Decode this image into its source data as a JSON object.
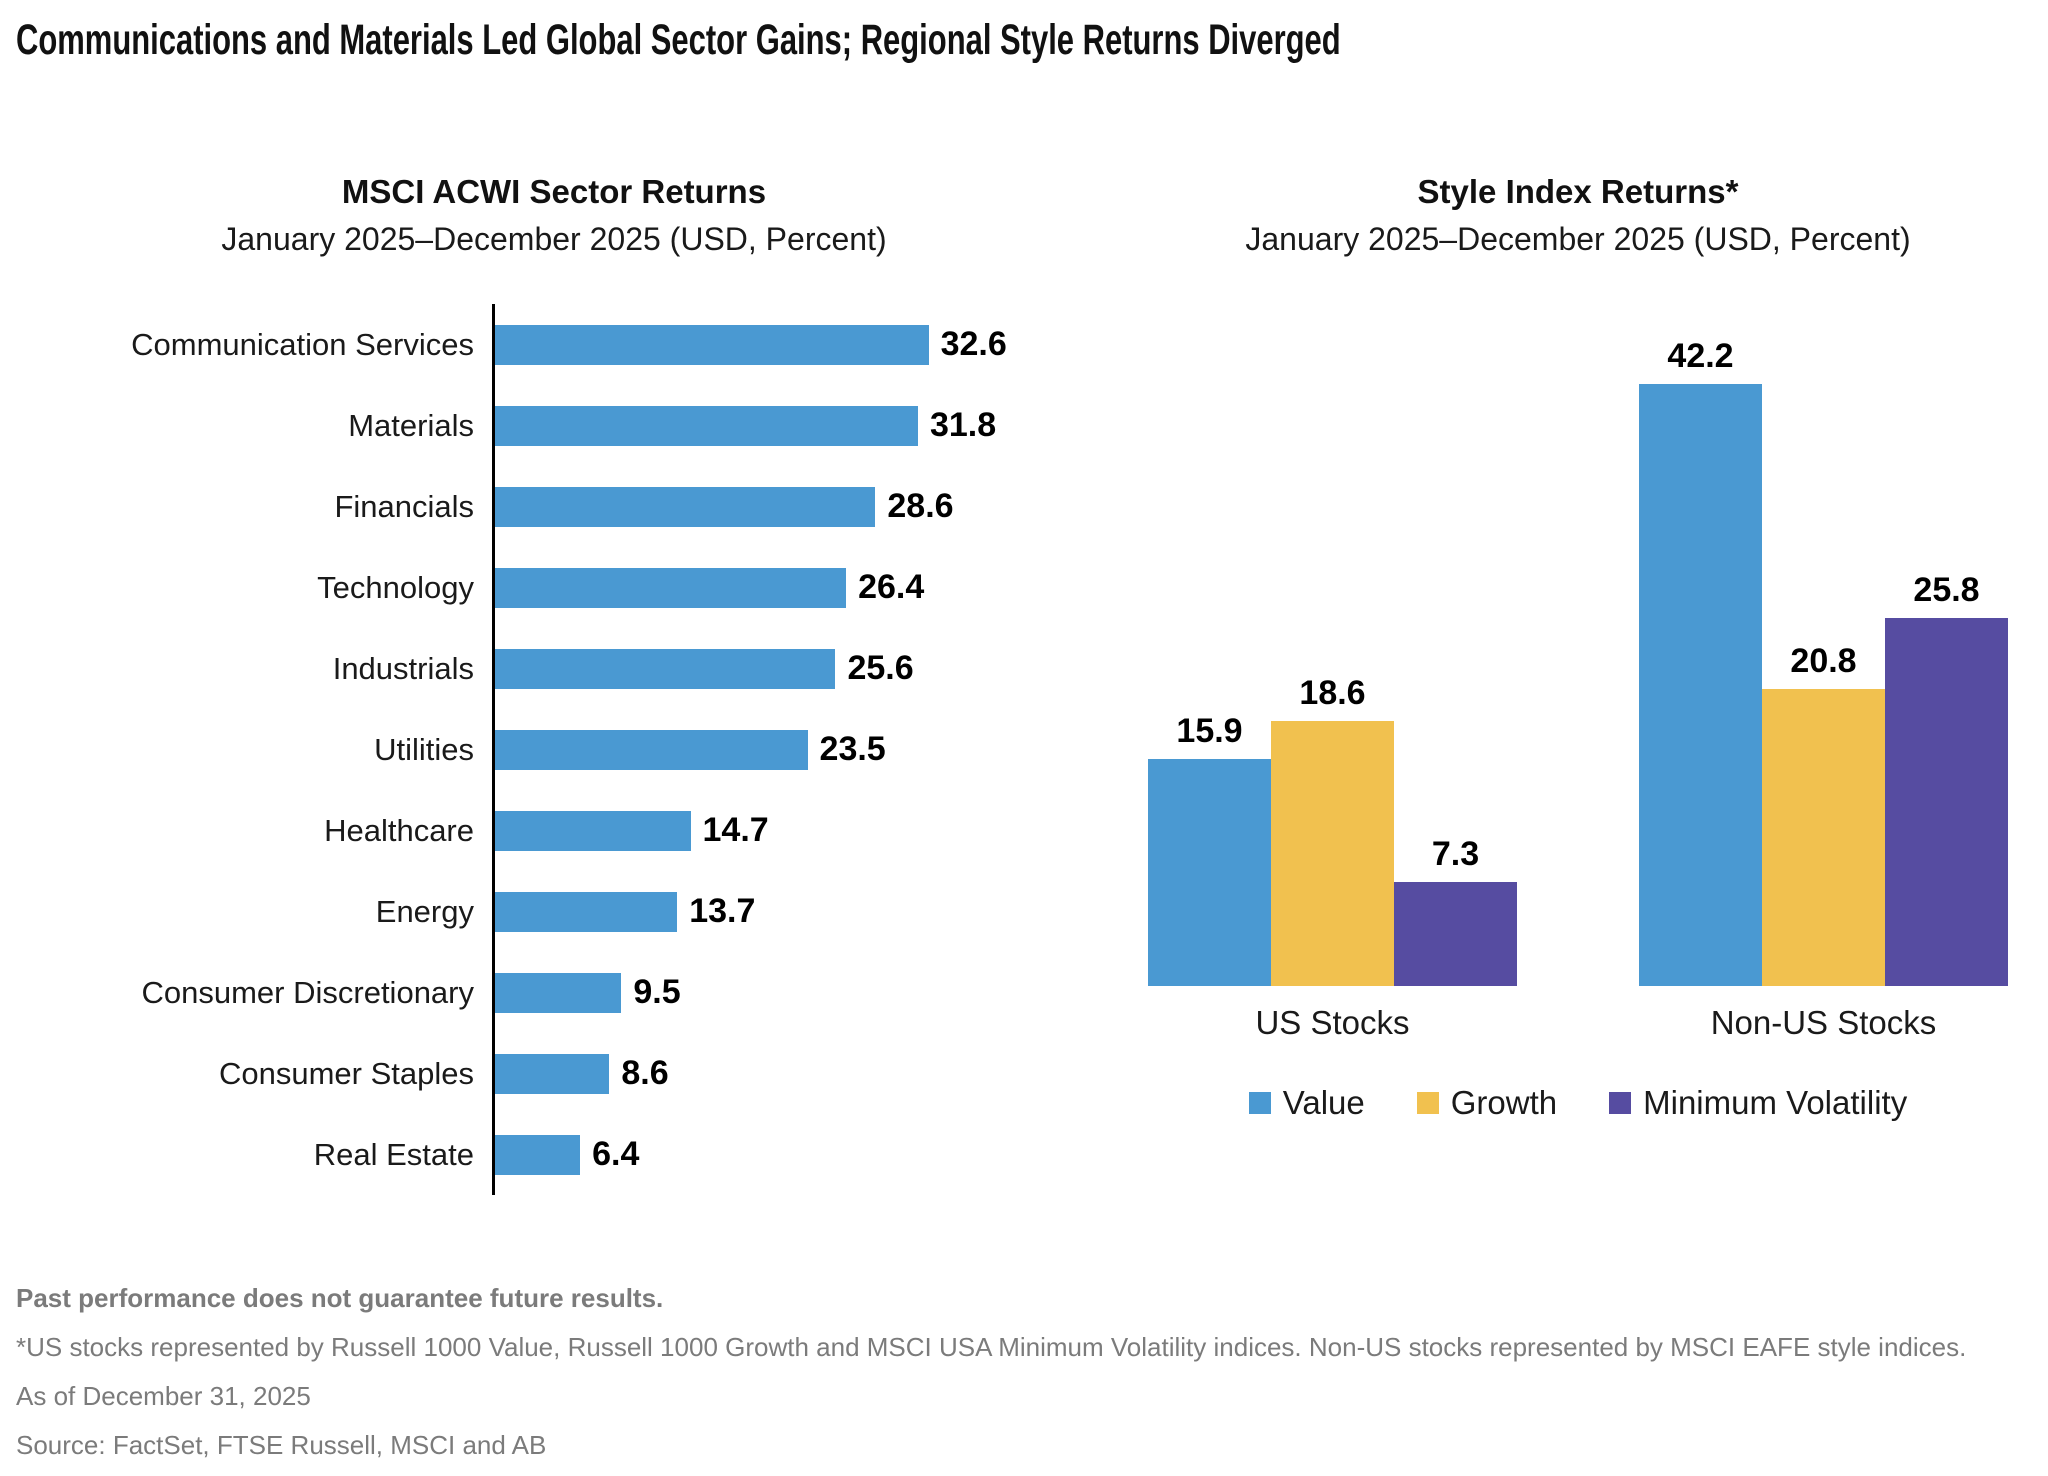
{
  "page_title": "Communications and Materials Led Global Sector Gains; Regional Style Returns Diverged",
  "chart_data": [
    {
      "type": "bar",
      "orientation": "horizontal",
      "title": "MSCI ACWI Sector Returns",
      "subtitle": "January 2025–December 2025 (USD, Percent)",
      "categories": [
        "Communication Services",
        "Materials",
        "Financials",
        "Technology",
        "Industrials",
        "Utilities",
        "Healthcare",
        "Energy",
        "Consumer Discretionary",
        "Consumer Staples",
        "Real Estate"
      ],
      "values": [
        32.6,
        31.8,
        28.6,
        26.4,
        25.6,
        23.5,
        14.7,
        13.7,
        9.5,
        8.6,
        6.4
      ],
      "bar_color": "#4A99D2",
      "value_labels": true,
      "xlim": [
        0,
        43
      ],
      "grid": false
    },
    {
      "type": "bar",
      "orientation": "vertical-grouped",
      "title": "Style Index Returns*",
      "subtitle": "January 2025–December 2025 (USD, Percent)",
      "categories": [
        "US Stocks",
        "Non-US Stocks"
      ],
      "series": [
        {
          "name": "Value",
          "color": "#4A99D2",
          "values": [
            15.9,
            42.2
          ]
        },
        {
          "name": "Growth",
          "color": "#F1C14F",
          "values": [
            18.6,
            20.8
          ]
        },
        {
          "name": "Minimum Volatility",
          "color": "#564CA1",
          "values": [
            7.3,
            25.8
          ]
        }
      ],
      "value_labels": true,
      "ylim": [
        0,
        50
      ],
      "legend_position": "bottom",
      "grid": false
    }
  ],
  "footnotes": [
    "Past performance does not guarantee future results.",
    "*US stocks represented by Russell 1000 Value, Russell 1000 Growth and MSCI USA Minimum Volatility indices. Non-US stocks represented by MSCI EAFE style indices.",
    "As of December 31, 2025",
    "Source: FactSet, FTSE Russell, MSCI and AB"
  ]
}
